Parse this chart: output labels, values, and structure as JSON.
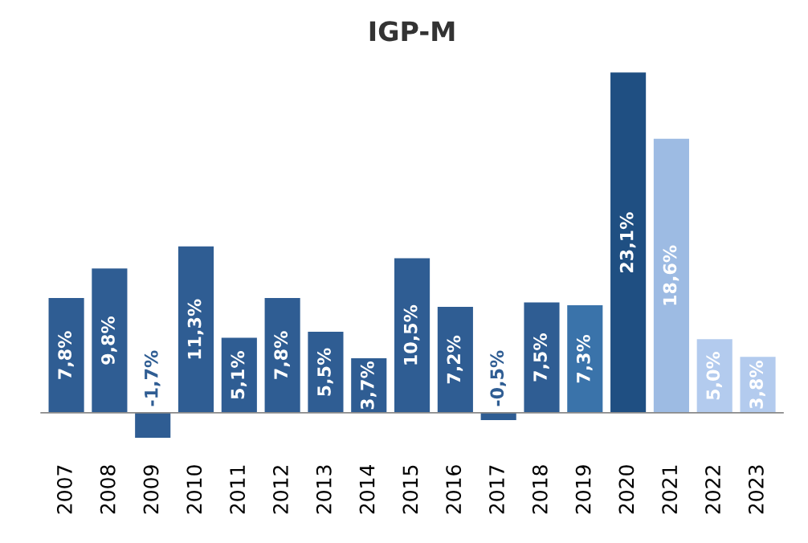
{
  "chart_data": {
    "type": "bar",
    "title": "IGP-M",
    "categories": [
      "2007",
      "2008",
      "2009",
      "2010",
      "2011",
      "2012",
      "2013",
      "2014",
      "2015",
      "2016",
      "2017",
      "2018",
      "2019",
      "2020",
      "2021",
      "2022",
      "2023"
    ],
    "values": [
      7.8,
      9.8,
      -1.7,
      11.3,
      5.1,
      7.8,
      5.5,
      3.7,
      10.5,
      7.2,
      -0.5,
      7.5,
      7.3,
      23.1,
      18.6,
      5.0,
      3.8
    ],
    "value_labels": [
      "7,8%",
      "9,8%",
      "-1,7%",
      "11,3%",
      "5,1%",
      "7,8%",
      "5,5%",
      "3,7%",
      "10,5%",
      "7,2%",
      "-0,5%",
      "7,5%",
      "7,3%",
      "23,1%",
      "18,6%",
      "5,0%",
      "3,8%"
    ],
    "colors": [
      "#2f5d93",
      "#2f5d93",
      "#2f5d93",
      "#2f5d93",
      "#2f5d93",
      "#2f5d93",
      "#2f5d93",
      "#2f5d93",
      "#2f5d93",
      "#2f5d93",
      "#2f5d93",
      "#2f5d93",
      "#3a73aa",
      "#1f4f82",
      "#9dbbe3",
      "#b3cbee",
      "#b3cbee"
    ],
    "grid": false,
    "legend": false
  }
}
